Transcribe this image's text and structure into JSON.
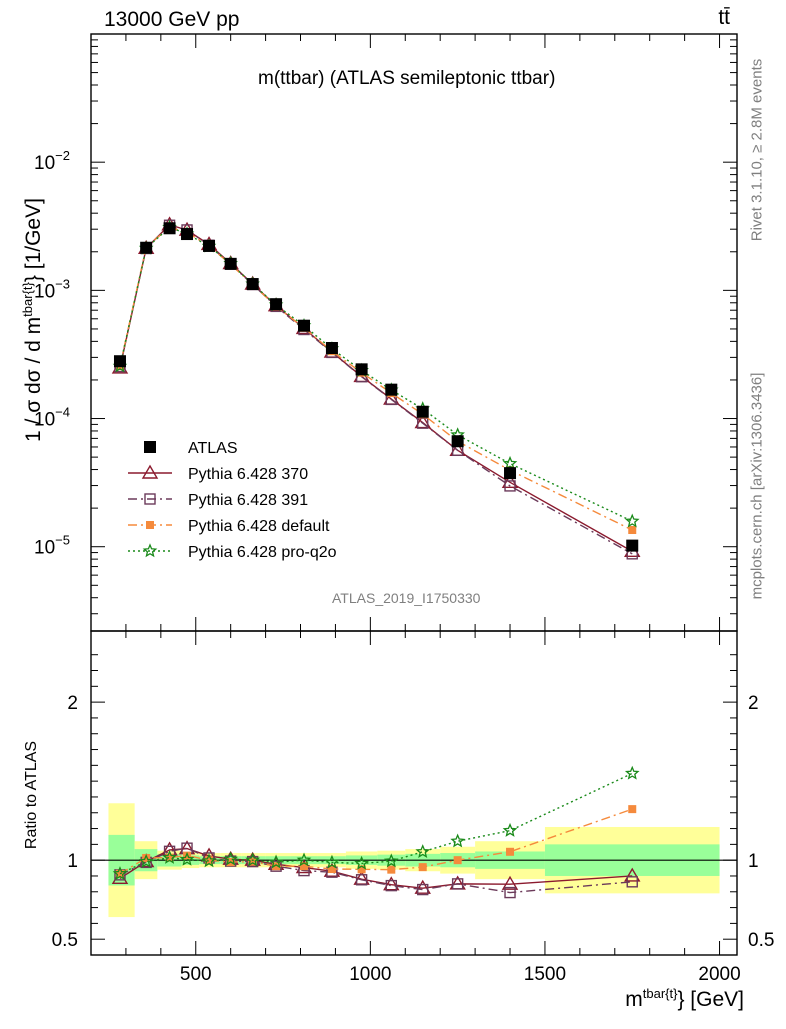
{
  "header": {
    "energy_label": "13000 GeV pp",
    "process_label": "tt̄"
  },
  "side_labels": {
    "rivet": "Rivet 3.1.10, ≥ 2.8M events",
    "source": "mcplots.cern.ch [arXiv:1306.3436]"
  },
  "analysis_id": "ATLAS_2019_I1750330",
  "chart_data": [
    {
      "type": "scatter",
      "title": "m(ttbar) (ATLAS semileptonic ttbar)",
      "ylabel_prefix": "1 / σ dσ / d m",
      "ylabel_sup": "tbar{t}",
      "ylabel_suffix": "} [1/GeV]",
      "yscale": "log",
      "xlim": [
        200,
        2050
      ],
      "ylim": [
        2.2e-06,
        0.1
      ],
      "y_ticks": [
        {
          "value": 1e-05,
          "base": "10",
          "exp": "−5"
        },
        {
          "value": 0.0001,
          "base": "10",
          "exp": "−4"
        },
        {
          "value": 0.001,
          "base": "10",
          "exp": "−3"
        },
        {
          "value": 0.01,
          "base": "10",
          "exp": "−2"
        }
      ],
      "legend_position": "lower-left",
      "x": [
        283,
        358,
        425,
        475,
        538,
        600,
        663,
        730,
        810,
        890,
        975,
        1060,
        1150,
        1250,
        1400,
        1750
      ],
      "series": [
        {
          "name": "ATLAS",
          "color": "#000000",
          "marker": "filled-square",
          "line": "none",
          "values": [
            0.00028,
            0.00215,
            0.00305,
            0.00275,
            0.00222,
            0.00161,
            0.00112,
            0.00078,
            0.00053,
            0.000355,
            0.000242,
            0.000168,
            0.000113,
            6.65e-05,
            3.75e-05,
            1.02e-05
          ]
        },
        {
          "name": "Pythia 6.428 370",
          "color": "#8b1a2e",
          "marker": "open-triangle",
          "line": "solid",
          "values": [
            0.000248,
            0.00213,
            0.00325,
            0.00295,
            0.00228,
            0.00162,
            0.00112,
            0.00076,
            0.000505,
            0.00033,
            0.000213,
            0.000142,
            9.3e-05,
            5.65e-05,
            3.18e-05,
            9.2e-06
          ]
        },
        {
          "name": "Pythia 6.428 391",
          "color": "#6b3a5a",
          "marker": "open-square",
          "line": "dashdot",
          "values": [
            0.000254,
            0.00212,
            0.00322,
            0.00296,
            0.00225,
            0.0016,
            0.00111,
            0.00075,
            0.000495,
            0.000328,
            0.000212,
            0.000141,
            9.2e-05,
            5.65e-05,
            2.98e-05,
            8.8e-06
          ]
        },
        {
          "name": "Pythia 6.428 default",
          "color": "#f58a3c",
          "marker": "filled-square-small",
          "line": "dashdot",
          "values": [
            0.000256,
            0.00218,
            0.0031,
            0.00283,
            0.00222,
            0.00159,
            0.00111,
            0.00075,
            0.00051,
            0.000335,
            0.000228,
            0.000158,
            0.000108,
            6.65e-05,
            3.95e-05,
            1.35e-05
          ]
        },
        {
          "name": "Pythia 6.428 pro-q2o",
          "color": "#1a8a1a",
          "marker": "star",
          "line": "dotted",
          "values": [
            0.000256,
            0.00213,
            0.0031,
            0.00276,
            0.00221,
            0.00162,
            0.00112,
            0.00077,
            0.00053,
            0.00035,
            0.000237,
            0.000167,
            0.000119,
            7.45e-05,
            4.45e-05,
            1.58e-05
          ]
        }
      ]
    },
    {
      "type": "scatter",
      "ylabel": "Ratio to ATLAS",
      "xlabel_prefix": "m",
      "xlabel_sup": "tbar{t}",
      "xlabel_suffix": "} [GeV]",
      "xlim": [
        200,
        2050
      ],
      "ylim": [
        0.4,
        2.45
      ],
      "x_ticks": [
        500,
        1000,
        1500,
        2000
      ],
      "y_ticks": [
        0.5,
        1,
        2
      ],
      "reference_line": 1,
      "uncertainty_bins": [
        {
          "x_low": 250,
          "x_high": 325,
          "inner": [
            0.84,
            1.16
          ],
          "outer": [
            0.64,
            1.36
          ]
        },
        {
          "x_low": 325,
          "x_high": 390,
          "inner": [
            0.93,
            1.07
          ],
          "outer": [
            0.88,
            1.12
          ]
        },
        {
          "x_low": 390,
          "x_high": 460,
          "inner": [
            0.96,
            1.04
          ],
          "outer": [
            0.94,
            1.06
          ]
        },
        {
          "x_low": 460,
          "x_high": 510,
          "inner": [
            0.97,
            1.03
          ],
          "outer": [
            0.95,
            1.05
          ]
        },
        {
          "x_low": 510,
          "x_high": 570,
          "inner": [
            0.975,
            1.025
          ],
          "outer": [
            0.955,
            1.045
          ]
        },
        {
          "x_low": 570,
          "x_high": 630,
          "inner": [
            0.975,
            1.025
          ],
          "outer": [
            0.955,
            1.045
          ]
        },
        {
          "x_low": 630,
          "x_high": 700,
          "inner": [
            0.975,
            1.025
          ],
          "outer": [
            0.955,
            1.045
          ]
        },
        {
          "x_low": 700,
          "x_high": 770,
          "inner": [
            0.975,
            1.025
          ],
          "outer": [
            0.955,
            1.045
          ]
        },
        {
          "x_low": 770,
          "x_high": 850,
          "inner": [
            0.975,
            1.025
          ],
          "outer": [
            0.955,
            1.045
          ]
        },
        {
          "x_low": 850,
          "x_high": 930,
          "inner": [
            0.975,
            1.025
          ],
          "outer": [
            0.955,
            1.045
          ]
        },
        {
          "x_low": 930,
          "x_high": 1020,
          "inner": [
            0.97,
            1.03
          ],
          "outer": [
            0.945,
            1.055
          ]
        },
        {
          "x_low": 1020,
          "x_high": 1100,
          "inner": [
            0.965,
            1.035
          ],
          "outer": [
            0.94,
            1.06
          ]
        },
        {
          "x_low": 1100,
          "x_high": 1200,
          "inner": [
            0.96,
            1.04
          ],
          "outer": [
            0.93,
            1.07
          ]
        },
        {
          "x_low": 1200,
          "x_high": 1300,
          "inner": [
            0.955,
            1.045
          ],
          "outer": [
            0.915,
            1.085
          ]
        },
        {
          "x_low": 1300,
          "x_high": 1500,
          "inner": [
            0.945,
            1.055
          ],
          "outer": [
            0.88,
            1.12
          ]
        },
        {
          "x_low": 1500,
          "x_high": 2000,
          "inner": [
            0.9,
            1.1
          ],
          "outer": [
            0.79,
            1.21
          ]
        }
      ],
      "series": [
        {
          "name": "Pythia 6.428 370",
          "values": [
            0.885,
            0.991,
            1.065,
            1.073,
            1.027,
            1.006,
            1.0,
            0.974,
            0.953,
            0.93,
            0.88,
            0.845,
            0.823,
            0.85,
            0.848,
            0.9
          ]
        },
        {
          "name": "Pythia 6.428 391",
          "values": [
            0.907,
            0.986,
            1.056,
            1.076,
            1.014,
            0.994,
            0.991,
            0.962,
            0.934,
            0.924,
            0.876,
            0.839,
            0.814,
            0.85,
            0.795,
            0.863
          ]
        },
        {
          "name": "Pythia 6.428 default",
          "values": [
            0.914,
            1.014,
            1.016,
            1.029,
            1.0,
            0.988,
            0.991,
            0.962,
            0.962,
            0.944,
            0.942,
            0.94,
            0.956,
            1.0,
            1.053,
            1.323
          ]
        },
        {
          "name": "Pythia 6.428 pro-q2o",
          "values": [
            0.914,
            0.991,
            1.016,
            1.004,
            0.995,
            1.006,
            1.0,
            0.987,
            1.0,
            0.986,
            0.979,
            0.994,
            1.053,
            1.12,
            1.187,
            1.549
          ]
        }
      ]
    }
  ]
}
